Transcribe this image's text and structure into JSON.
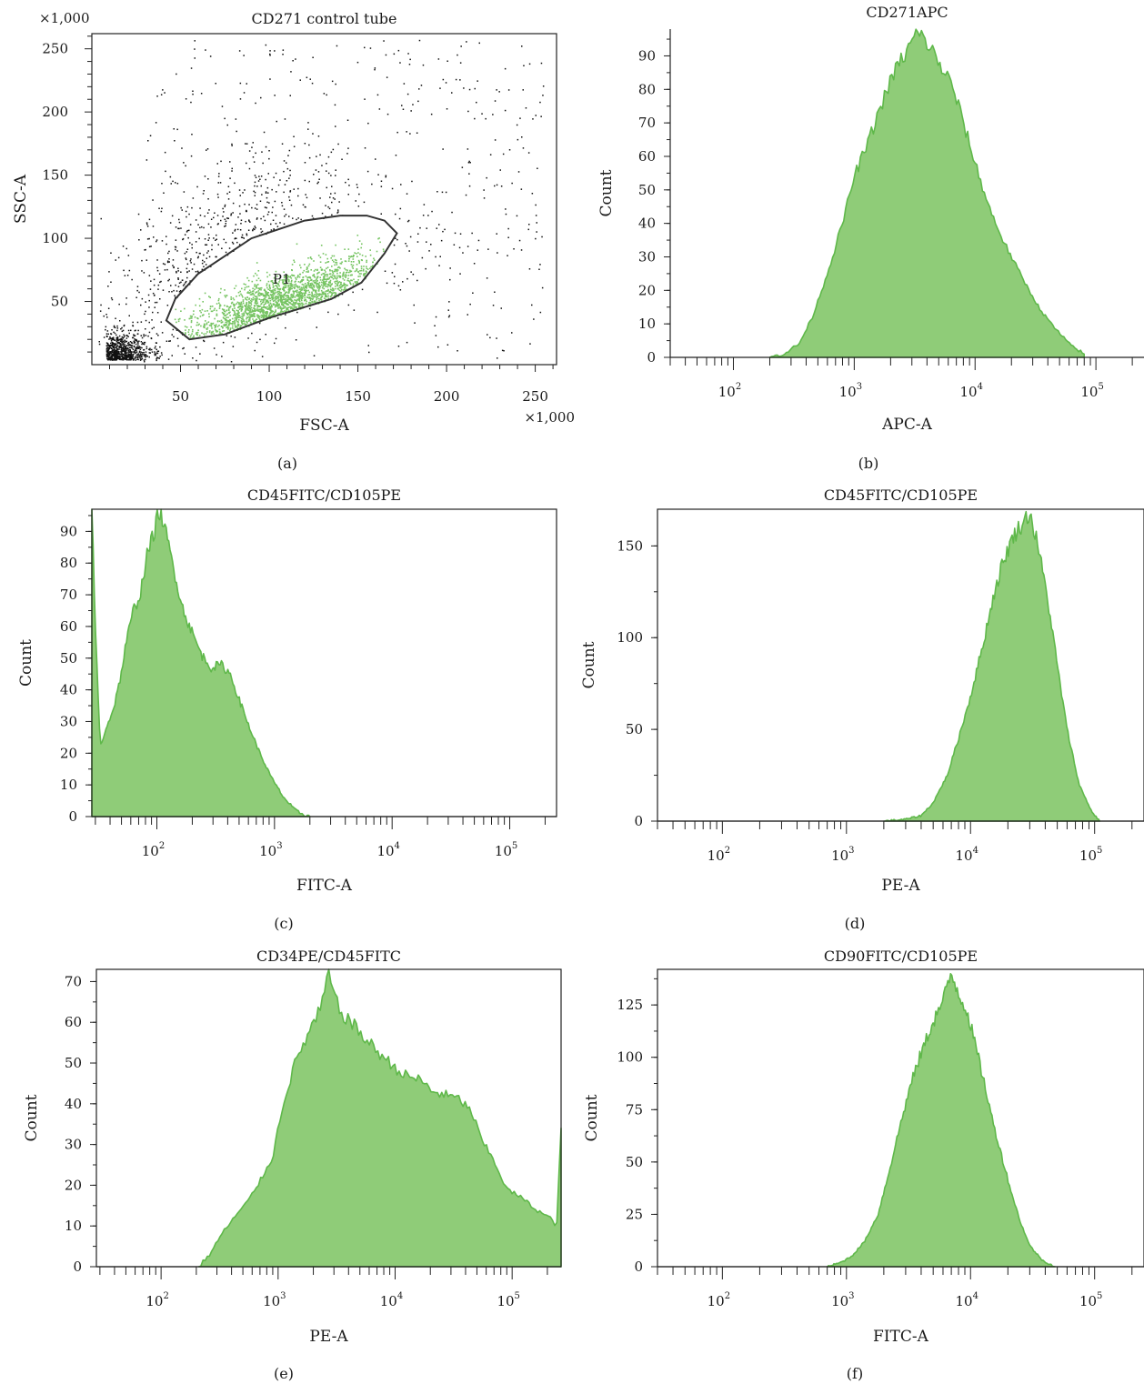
{
  "chart_data": [
    {
      "panel_label": "(a)",
      "type": "scatter",
      "title": "CD271 control tube",
      "xlabel": "FSC-A",
      "ylabel": "SSC-A",
      "x_multiplier": "×1,000",
      "y_multiplier": "×1,000",
      "xlim": [
        0,
        262
      ],
      "ylim": [
        0,
        262
      ],
      "x_ticks": [
        "50",
        "100",
        "150",
        "200",
        "250"
      ],
      "x_tick_values": [
        50,
        100,
        150,
        200,
        250
      ],
      "y_ticks": [
        "50",
        "100",
        "150",
        "200",
        "250"
      ],
      "y_tick_values": [
        50,
        100,
        150,
        200,
        250
      ],
      "gate": {
        "name": "P1",
        "polygon": [
          [
            42,
            35
          ],
          [
            47,
            52
          ],
          [
            60,
            72
          ],
          [
            90,
            100
          ],
          [
            120,
            114
          ],
          [
            140,
            118
          ],
          [
            155,
            118
          ],
          [
            165,
            114
          ],
          [
            172,
            104
          ],
          [
            165,
            88
          ],
          [
            152,
            65
          ],
          [
            135,
            52
          ],
          [
            100,
            37
          ],
          [
            75,
            24
          ],
          [
            55,
            20
          ]
        ]
      },
      "colors": {
        "ungated": "#111111",
        "gated": "#76c462"
      }
    },
    {
      "panel_label": "(b)",
      "type": "area",
      "title": "CD271APC",
      "xlabel": "APC-A",
      "ylabel": "Count",
      "x_scale": "log",
      "xlim": [
        30,
        250000
      ],
      "ylim": [
        0,
        98
      ],
      "y_ticks": [
        "0",
        "10",
        "20",
        "30",
        "40",
        "50",
        "60",
        "70",
        "80",
        "90"
      ],
      "y_tick_values": [
        0,
        10,
        20,
        30,
        40,
        50,
        60,
        70,
        80,
        90
      ],
      "x_ticks": [
        {
          "base": "10",
          "exp": "2",
          "value": 100
        },
        {
          "base": "10",
          "exp": "3",
          "value": 1000
        },
        {
          "base": "10",
          "exp": "4",
          "value": 10000
        },
        {
          "base": "10",
          "exp": "5",
          "value": 100000
        }
      ],
      "series": [
        {
          "x": [
            200,
            260,
            350,
            450,
            600,
            800,
            1000,
            1300,
            1700,
            2200,
            2800,
            3300,
            4000,
            5000,
            6500,
            8000,
            10000,
            13000,
            17000,
            22000,
            28000,
            35000,
            45000,
            60000,
            80000
          ],
          "y": [
            0,
            1,
            4,
            12,
            25,
            40,
            54,
            64,
            76,
            86,
            92,
            97,
            94,
            88,
            81,
            70,
            58,
            45,
            35,
            27,
            20,
            14,
            9,
            4,
            1
          ]
        }
      ]
    },
    {
      "panel_label": "(c)",
      "type": "area",
      "title": "CD45FITC/CD105PE",
      "xlabel": "FITC-A",
      "ylabel": "Count",
      "x_scale": "log",
      "xlim": [
        28,
        250000
      ],
      "ylim": [
        0,
        97
      ],
      "y_ticks": [
        "0",
        "10",
        "20",
        "30",
        "40",
        "50",
        "60",
        "70",
        "80",
        "90"
      ],
      "y_tick_values": [
        0,
        10,
        20,
        30,
        40,
        50,
        60,
        70,
        80,
        90
      ],
      "x_ticks": [
        {
          "base": "10",
          "exp": "2",
          "value": 100
        },
        {
          "base": "10",
          "exp": "3",
          "value": 1000
        },
        {
          "base": "10",
          "exp": "4",
          "value": 10000
        },
        {
          "base": "10",
          "exp": "5",
          "value": 100000
        }
      ],
      "series": [
        {
          "x": [
            28,
            30,
            33,
            37,
            42,
            48,
            55,
            63,
            72,
            82,
            95,
            105,
            120,
            140,
            165,
            200,
            240,
            290,
            350,
            420,
            500,
            600,
            750,
            950,
            1200,
            1500,
            1800,
            2000
          ],
          "y": [
            97,
            60,
            22,
            28,
            33,
            42,
            55,
            65,
            70,
            82,
            90,
            97,
            89,
            78,
            66,
            58,
            51,
            47,
            48,
            45,
            37,
            29,
            20,
            12,
            6,
            2,
            0.5,
            0
          ]
        }
      ]
    },
    {
      "panel_label": "(d)",
      "type": "area",
      "title": "CD45FITC/CD105PE",
      "xlabel": "PE-A",
      "ylabel": "Count",
      "x_scale": "log",
      "xlim": [
        30,
        250000
      ],
      "ylim": [
        0,
        170
      ],
      "y_ticks": [
        "0",
        "50",
        "100",
        "150"
      ],
      "y_tick_values": [
        0,
        50,
        100,
        150
      ],
      "x_ticks": [
        {
          "base": "10",
          "exp": "2",
          "value": 100
        },
        {
          "base": "10",
          "exp": "3",
          "value": 1000
        },
        {
          "base": "10",
          "exp": "4",
          "value": 10000
        },
        {
          "base": "10",
          "exp": "5",
          "value": 100000
        }
      ],
      "series": [
        {
          "x": [
            2000,
            3000,
            4000,
            5000,
            6500,
            8000,
            10000,
            12500,
            15000,
            18000,
            22000,
            26000,
            30000,
            35000,
            42000,
            50000,
            60000,
            75000,
            95000,
            110000
          ],
          "y": [
            0,
            1,
            3,
            10,
            25,
            45,
            68,
            95,
            120,
            140,
            155,
            162,
            168,
            150,
            120,
            85,
            50,
            20,
            5,
            0
          ]
        }
      ]
    },
    {
      "panel_label": "(e)",
      "type": "area",
      "title": "CD34PE/CD45FITC",
      "xlabel": "PE-A",
      "ylabel": "Count",
      "x_scale": "log",
      "xlim": [
        28,
        262000
      ],
      "ylim": [
        0,
        73
      ],
      "y_ticks": [
        "0",
        "10",
        "20",
        "30",
        "40",
        "50",
        "60",
        "70"
      ],
      "y_tick_values": [
        0,
        10,
        20,
        30,
        40,
        50,
        60,
        70
      ],
      "x_ticks": [
        {
          "base": "10",
          "exp": "2",
          "value": 100
        },
        {
          "base": "10",
          "exp": "3",
          "value": 1000
        },
        {
          "base": "10",
          "exp": "4",
          "value": 10000
        },
        {
          "base": "10",
          "exp": "5",
          "value": 100000
        }
      ],
      "series": [
        {
          "x": [
            210,
            260,
            330,
            420,
            550,
            700,
            900,
            1100,
            1400,
            1800,
            2300,
            2700,
            3300,
            4200,
            5500,
            7000,
            9000,
            12000,
            16000,
            21000,
            28000,
            36000,
            45000,
            55000,
            70000,
            90000,
            120000,
            160000,
            210000,
            240000,
            262000
          ],
          "y": [
            0,
            3,
            8,
            12,
            16,
            21,
            27,
            40,
            50,
            57,
            63,
            72,
            63,
            60,
            56,
            53,
            50,
            47,
            46,
            43,
            42,
            41,
            38,
            31,
            26,
            19,
            17,
            14,
            12,
            10,
            34
          ]
        }
      ]
    },
    {
      "panel_label": "(f)",
      "type": "area",
      "title": "CD90FITC/CD105PE",
      "xlabel": "FITC-A",
      "ylabel": "Count",
      "x_scale": "log",
      "xlim": [
        30,
        250000
      ],
      "ylim": [
        0,
        142
      ],
      "y_ticks": [
        "0",
        "25",
        "50",
        "75",
        "100",
        "125"
      ],
      "y_tick_values": [
        0,
        25,
        50,
        75,
        100,
        125
      ],
      "x_ticks": [
        {
          "base": "10",
          "exp": "2",
          "value": 100
        },
        {
          "base": "10",
          "exp": "3",
          "value": 1000
        },
        {
          "base": "10",
          "exp": "4",
          "value": 10000
        },
        {
          "base": "10",
          "exp": "5",
          "value": 100000
        }
      ],
      "series": [
        {
          "x": [
            700,
            900,
            1100,
            1400,
            1800,
            2200,
            2700,
            3300,
            4000,
            5000,
            6000,
            7000,
            8000,
            9500,
            11000,
            13000,
            15000,
            18000,
            21000,
            25000,
            30000,
            38000,
            48000
          ],
          "y": [
            0,
            2,
            5,
            12,
            25,
            45,
            67,
            87,
            102,
            117,
            127,
            140,
            131,
            121,
            105,
            87,
            70,
            52,
            37,
            22,
            10,
            3,
            0
          ]
        }
      ]
    }
  ]
}
